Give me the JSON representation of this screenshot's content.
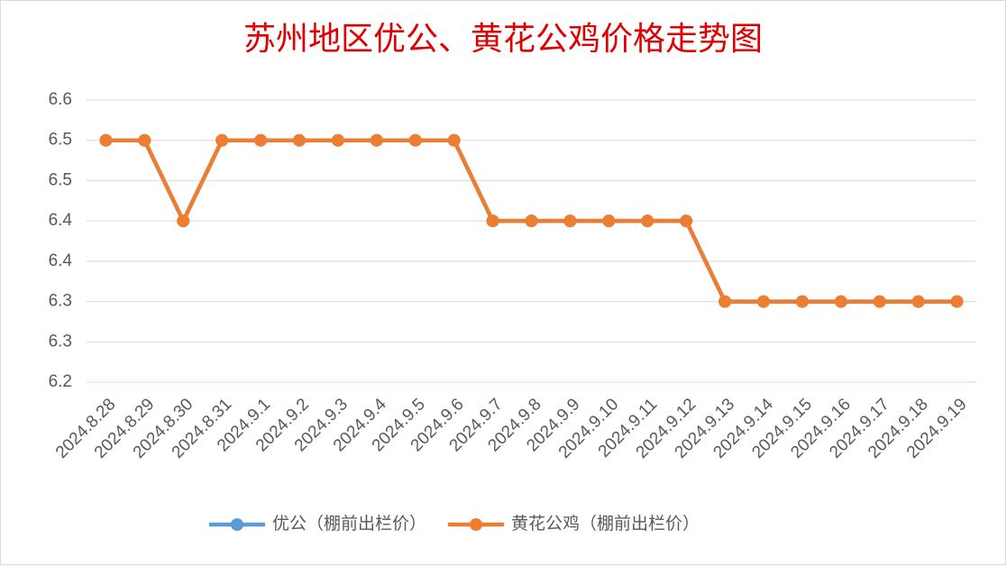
{
  "chart_data": {
    "type": "line",
    "title": "苏州地区优公、黄花公鸡价格走势图",
    "categories": [
      "2024.8.28",
      "2024.8.29",
      "2024.8.30",
      "2024.8.31",
      "2024.9.1",
      "2024.9.2",
      "2024.9.3",
      "2024.9.4",
      "2024.9.5",
      "2024.9.6",
      "2024.9.7",
      "2024.9.8",
      "2024.9.9",
      "2024.9.10",
      "2024.9.11",
      "2024.9.12",
      "2024.9.13",
      "2024.9.14",
      "2024.9.15",
      "2024.9.16",
      "2024.9.17",
      "2024.9.18",
      "2024.9.19"
    ],
    "series": [
      {
        "name": "优公（棚前出栏价）",
        "color": "#5b9bd5",
        "values": [
          6.5,
          6.5,
          6.4,
          6.5,
          6.5,
          6.5,
          6.5,
          6.5,
          6.5,
          6.5,
          6.4,
          6.4,
          6.4,
          6.4,
          6.4,
          6.4,
          6.3,
          6.3,
          6.3,
          6.3,
          6.3,
          6.3,
          6.3
        ]
      },
      {
        "name": "黄花公鸡（棚前出栏价）",
        "color": "#ed7d31",
        "values": [
          6.5,
          6.5,
          6.4,
          6.5,
          6.5,
          6.5,
          6.5,
          6.5,
          6.5,
          6.5,
          6.4,
          6.4,
          6.4,
          6.4,
          6.4,
          6.4,
          6.3,
          6.3,
          6.3,
          6.3,
          6.3,
          6.3,
          6.3
        ]
      }
    ],
    "ylim": [
      6.2,
      6.55
    ],
    "yticks": [
      6.2,
      {
        "value": 6.25,
        "label": "6.3"
      },
      6.3,
      {
        "value": 6.35,
        "label": "6.4"
      },
      6.4,
      {
        "value": 6.45,
        "label": "6.5"
      },
      6.5,
      {
        "value": 6.55,
        "label": "6.6"
      }
    ],
    "grid": true
  }
}
